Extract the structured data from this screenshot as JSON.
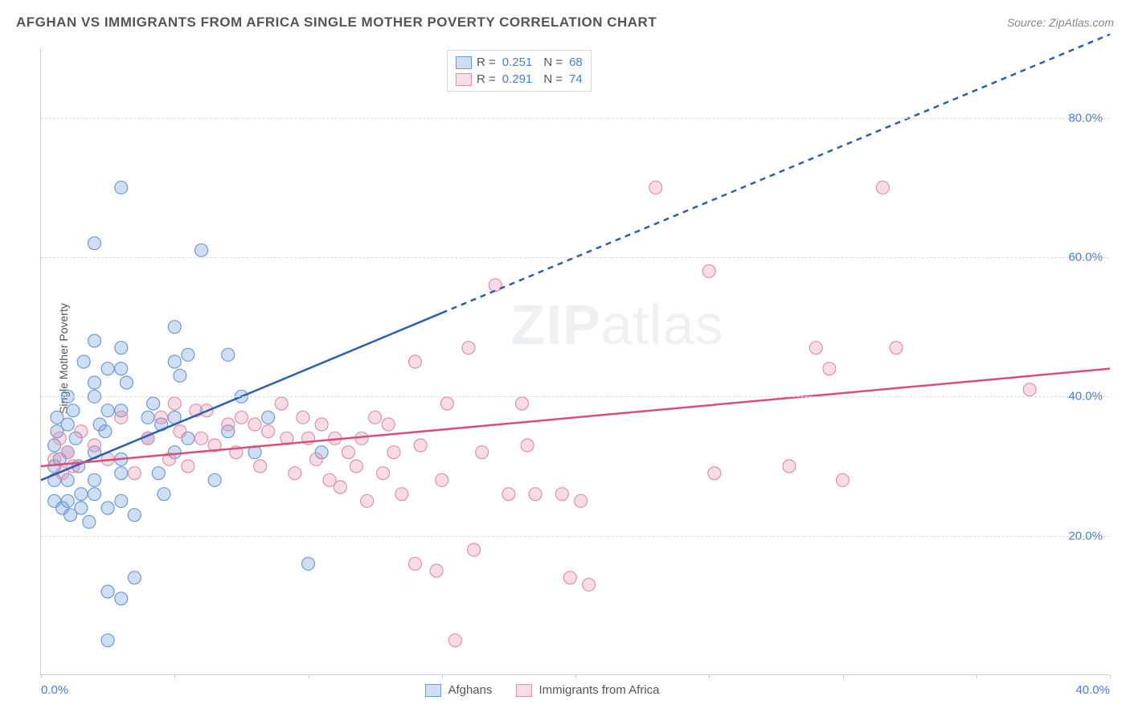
{
  "chart": {
    "type": "scatter",
    "title": "AFGHAN VS IMMIGRANTS FROM AFRICA SINGLE MOTHER POVERTY CORRELATION CHART",
    "source_label": "Source: ZipAtlas.com",
    "y_axis_label": "Single Mother Poverty",
    "watermark": "ZIPatlas",
    "background_color": "#ffffff",
    "grid_color": "#dddddd",
    "axis_color": "#cccccc",
    "x_range": [
      0,
      40
    ],
    "y_range": [
      0,
      90
    ],
    "y_ticks": [
      20,
      40,
      60,
      80
    ],
    "y_tick_labels": [
      "20.0%",
      "40.0%",
      "60.0%",
      "80.0%"
    ],
    "x_ticks": [
      0,
      5,
      10,
      15,
      20,
      25,
      30,
      35,
      40
    ],
    "x_tick_labels_shown": {
      "0": "0.0%",
      "40": "40.0%"
    },
    "tick_label_color": "#4a7ec9",
    "series": {
      "afghans": {
        "label": "Afghans",
        "color_fill": "rgba(120,160,220,0.35)",
        "color_stroke": "#6b9bd8",
        "color_line": "#2b5fb5",
        "marker_radius": 8,
        "R": "0.251",
        "N": "68",
        "regression": {
          "x1": 0,
          "y1": 28,
          "x2_solid": 15,
          "y2_solid": 52,
          "x2_dash": 40,
          "y2_dash": 92
        },
        "points": [
          [
            0.5,
            33
          ],
          [
            0.5,
            30
          ],
          [
            0.5,
            28
          ],
          [
            0.5,
            25
          ],
          [
            0.6,
            37
          ],
          [
            0.6,
            35
          ],
          [
            0.7,
            31
          ],
          [
            0.8,
            24
          ],
          [
            1.0,
            40
          ],
          [
            1.0,
            36
          ],
          [
            1.0,
            32
          ],
          [
            1.0,
            28
          ],
          [
            1.0,
            25
          ],
          [
            1.1,
            23
          ],
          [
            1.2,
            38
          ],
          [
            1.3,
            34
          ],
          [
            1.4,
            30
          ],
          [
            1.5,
            26
          ],
          [
            1.5,
            24
          ],
          [
            1.6,
            45
          ],
          [
            1.8,
            22
          ],
          [
            2.0,
            62
          ],
          [
            2.0,
            48
          ],
          [
            2.0,
            42
          ],
          [
            2.0,
            40
          ],
          [
            2.0,
            32
          ],
          [
            2.0,
            28
          ],
          [
            2.0,
            26
          ],
          [
            2.2,
            36
          ],
          [
            2.4,
            35
          ],
          [
            2.5,
            5
          ],
          [
            2.5,
            12
          ],
          [
            2.5,
            24
          ],
          [
            2.5,
            44
          ],
          [
            2.5,
            38
          ],
          [
            3.0,
            70
          ],
          [
            3.0,
            47
          ],
          [
            3.0,
            44
          ],
          [
            3.0,
            38
          ],
          [
            3.0,
            31
          ],
          [
            3.0,
            29
          ],
          [
            3.0,
            25
          ],
          [
            3.0,
            11
          ],
          [
            3.2,
            42
          ],
          [
            3.5,
            23
          ],
          [
            3.5,
            14
          ],
          [
            4.0,
            34
          ],
          [
            4.0,
            37
          ],
          [
            4.2,
            39
          ],
          [
            4.4,
            29
          ],
          [
            4.5,
            36
          ],
          [
            4.6,
            26
          ],
          [
            5.0,
            45
          ],
          [
            5.0,
            50
          ],
          [
            5.0,
            37
          ],
          [
            5.0,
            32
          ],
          [
            5.2,
            43
          ],
          [
            5.5,
            34
          ],
          [
            5.5,
            46
          ],
          [
            6.0,
            61
          ],
          [
            6.5,
            28
          ],
          [
            7.0,
            46
          ],
          [
            7.0,
            35
          ],
          [
            7.5,
            40
          ],
          [
            8.0,
            32
          ],
          [
            8.5,
            37
          ],
          [
            10.0,
            16
          ],
          [
            10.5,
            32
          ]
        ]
      },
      "immigrants": {
        "label": "Immigrants from Africa",
        "color_fill": "rgba(230,140,170,0.30)",
        "color_stroke": "#e38fa8",
        "color_line": "#d94f78",
        "marker_radius": 8,
        "R": "0.291",
        "N": "74",
        "regression": {
          "x1": 0,
          "y1": 30,
          "x2_solid": 40,
          "y2_solid": 44
        },
        "points": [
          [
            0.5,
            31
          ],
          [
            0.7,
            34
          ],
          [
            0.8,
            29
          ],
          [
            1.0,
            32
          ],
          [
            1.2,
            30
          ],
          [
            1.5,
            35
          ],
          [
            2.0,
            33
          ],
          [
            2.5,
            31
          ],
          [
            3.0,
            37
          ],
          [
            3.5,
            29
          ],
          [
            4.0,
            34
          ],
          [
            4.5,
            37
          ],
          [
            4.8,
            31
          ],
          [
            5.0,
            39
          ],
          [
            5.2,
            35
          ],
          [
            5.5,
            30
          ],
          [
            5.8,
            38
          ],
          [
            6.0,
            34
          ],
          [
            6.2,
            38
          ],
          [
            6.5,
            33
          ],
          [
            7.0,
            36
          ],
          [
            7.3,
            32
          ],
          [
            7.5,
            37
          ],
          [
            8.0,
            36
          ],
          [
            8.2,
            30
          ],
          [
            8.5,
            35
          ],
          [
            9.0,
            39
          ],
          [
            9.2,
            34
          ],
          [
            9.5,
            29
          ],
          [
            9.8,
            37
          ],
          [
            10.0,
            34
          ],
          [
            10.3,
            31
          ],
          [
            10.5,
            36
          ],
          [
            10.8,
            28
          ],
          [
            11.0,
            34
          ],
          [
            11.2,
            27
          ],
          [
            11.5,
            32
          ],
          [
            11.8,
            30
          ],
          [
            12.0,
            34
          ],
          [
            12.2,
            25
          ],
          [
            12.5,
            37
          ],
          [
            12.8,
            29
          ],
          [
            13.0,
            36
          ],
          [
            13.2,
            32
          ],
          [
            13.5,
            26
          ],
          [
            14.0,
            45
          ],
          [
            14.0,
            16
          ],
          [
            14.2,
            33
          ],
          [
            14.8,
            15
          ],
          [
            15.0,
            28
          ],
          [
            15.2,
            39
          ],
          [
            15.5,
            5
          ],
          [
            16.0,
            47
          ],
          [
            16.2,
            18
          ],
          [
            16.5,
            32
          ],
          [
            17.0,
            56
          ],
          [
            17.5,
            26
          ],
          [
            18.0,
            39
          ],
          [
            18.2,
            33
          ],
          [
            18.5,
            26
          ],
          [
            19.5,
            26
          ],
          [
            19.8,
            14
          ],
          [
            20.2,
            25
          ],
          [
            20.5,
            13
          ],
          [
            23.0,
            70
          ],
          [
            25.0,
            58
          ],
          [
            25.2,
            29
          ],
          [
            28.0,
            30
          ],
          [
            29.0,
            47
          ],
          [
            29.5,
            44
          ],
          [
            30.0,
            28
          ],
          [
            31.5,
            70
          ],
          [
            32.0,
            47
          ],
          [
            37.0,
            41
          ]
        ]
      }
    },
    "legend_bottom": [
      "Afghans",
      "Immigrants from Africa"
    ]
  }
}
